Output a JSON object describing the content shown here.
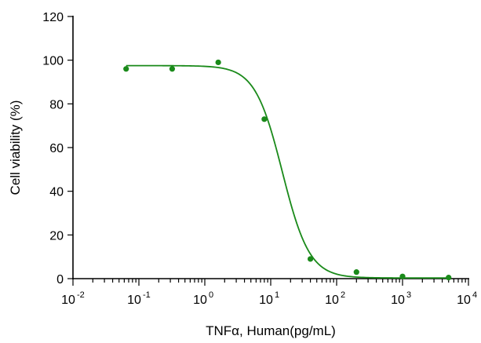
{
  "chart_data": {
    "type": "scatter",
    "xlabel": "TNFα, Human(pg/mL)",
    "ylabel": "Cell viability (%)",
    "x_scale": "log",
    "xlim": [
      0.01,
      10000
    ],
    "ylim": [
      0,
      120
    ],
    "x_tick_base": "10",
    "x_tick_exponents": [
      "-2",
      "-1",
      "0",
      "1",
      "2",
      "3",
      "4"
    ],
    "y_ticks": [
      "0",
      "20",
      "40",
      "60",
      "80",
      "100",
      "120"
    ],
    "grid": false,
    "color": "#1a8a1a",
    "series": [
      {
        "x": [
          0.064,
          0.32,
          1.6,
          8,
          40,
          200,
          1000,
          5000
        ],
        "y": [
          96,
          96,
          99,
          73,
          9,
          3,
          1,
          0.5
        ]
      }
    ],
    "fit_curve": {
      "model": "four-parameter logistic",
      "top": 97.5,
      "bottom": 0.3,
      "ec50": 15,
      "hill": 2.1
    }
  }
}
